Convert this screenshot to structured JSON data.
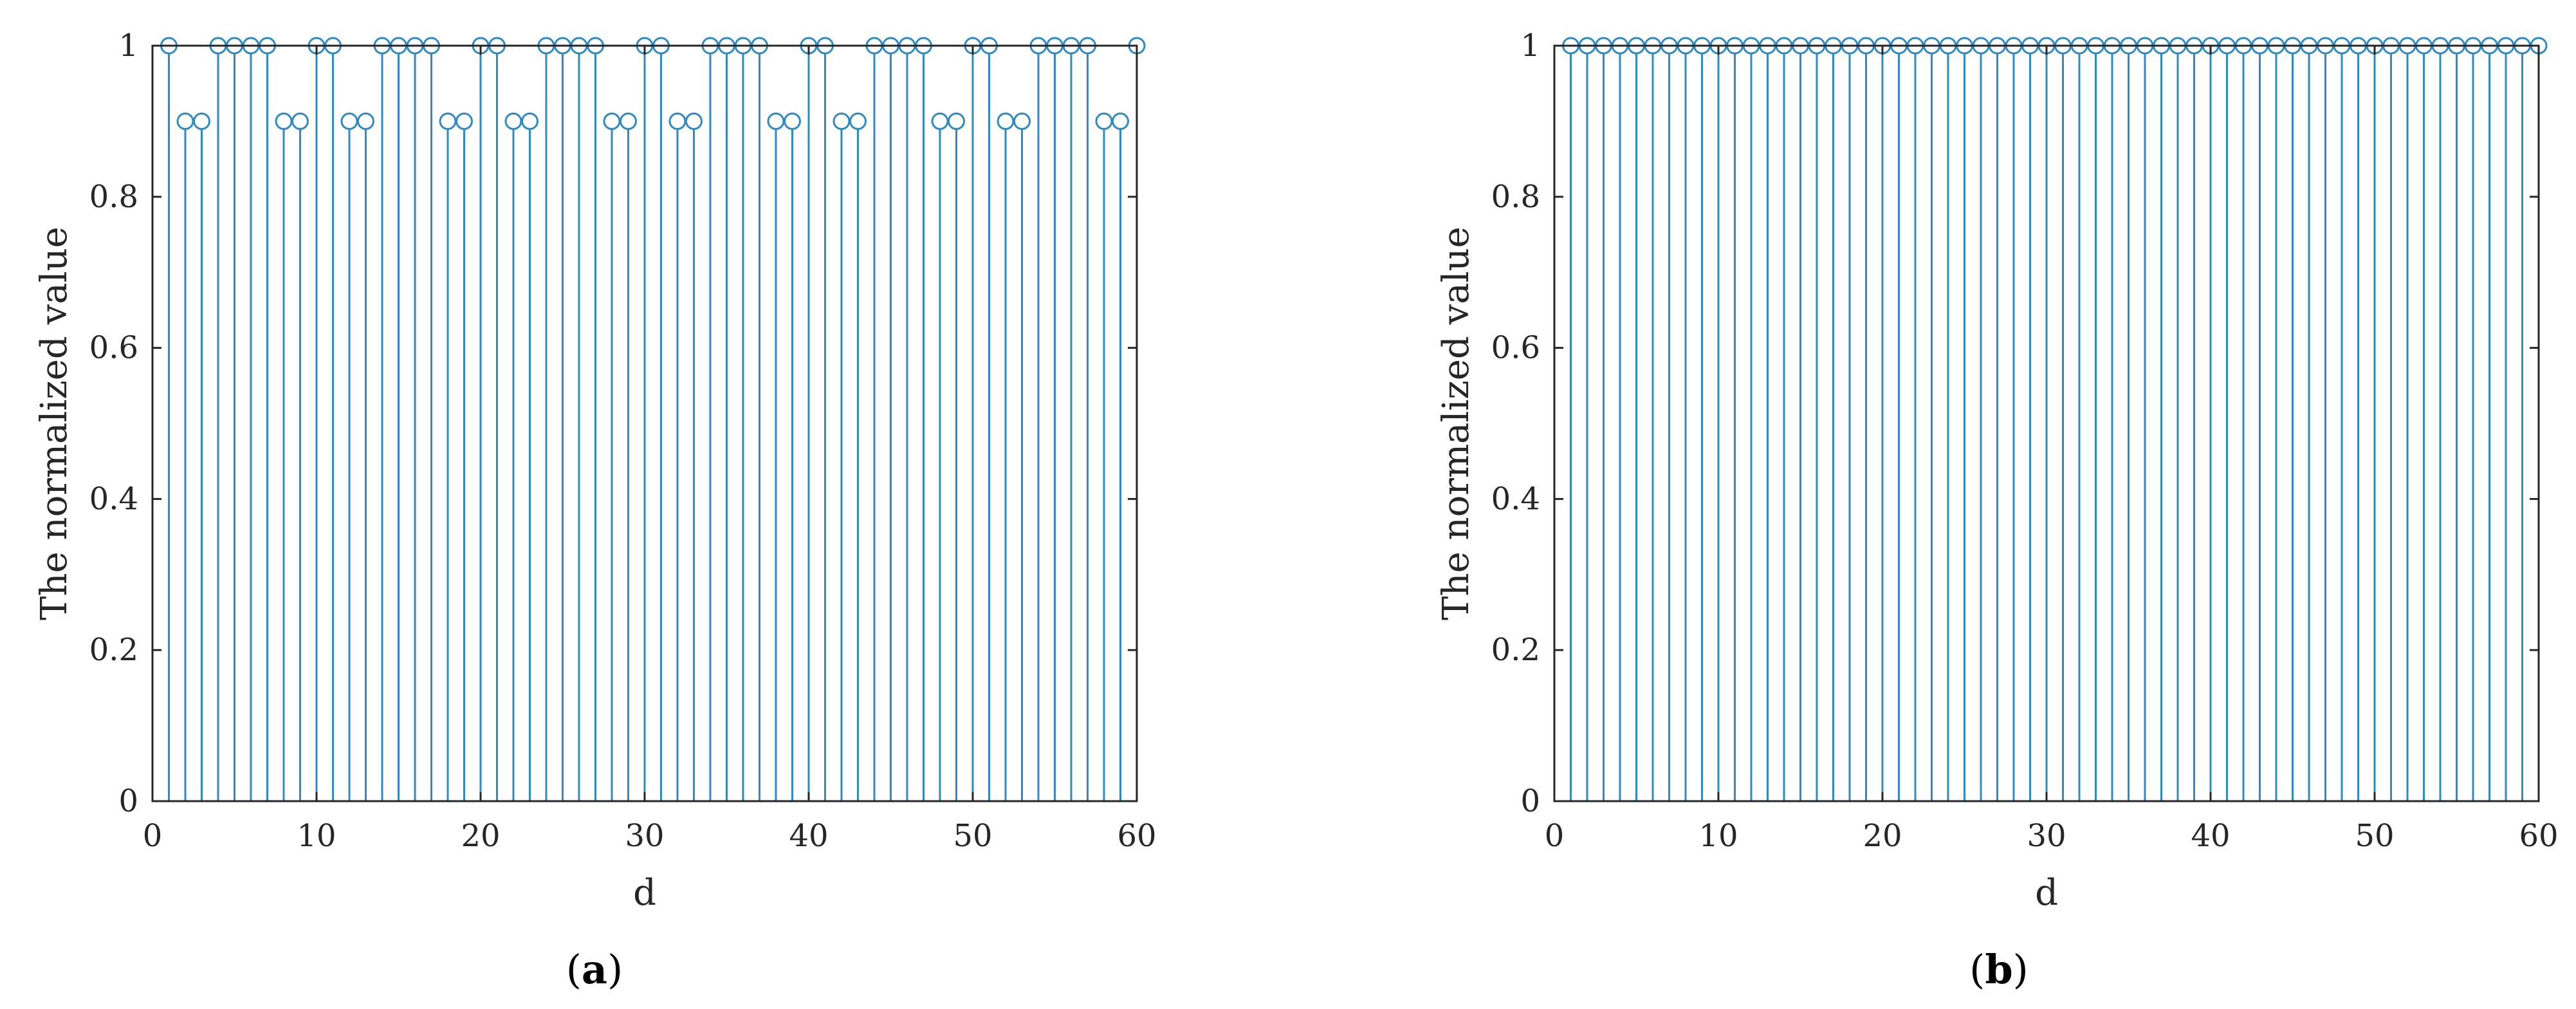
{
  "style": {
    "stem_color": "#2f8ac4",
    "axis_color": "#262626"
  },
  "chart_data": [
    {
      "type": "stem",
      "panel_label": "a",
      "caption_prefix": "(",
      "caption_suffix": ")",
      "xlabel": "d",
      "ylabel": "The normalized value",
      "xlim": [
        0,
        60
      ],
      "ylim": [
        0,
        1
      ],
      "xticks": [
        "0",
        "10",
        "20",
        "30",
        "40",
        "50",
        "60"
      ],
      "yticks": [
        "0",
        "0.2",
        "0.4",
        "0.6",
        "0.8",
        "1"
      ],
      "grid": false,
      "x": [
        1,
        2,
        3,
        4,
        5,
        6,
        7,
        8,
        9,
        10,
        11,
        12,
        13,
        14,
        15,
        16,
        17,
        18,
        19,
        20,
        21,
        22,
        23,
        24,
        25,
        26,
        27,
        28,
        29,
        30,
        31,
        32,
        33,
        34,
        35,
        36,
        37,
        38,
        39,
        40,
        41,
        42,
        43,
        44,
        45,
        46,
        47,
        48,
        49,
        50,
        51,
        52,
        53,
        54,
        55,
        56,
        57,
        58,
        59,
        60
      ],
      "y": [
        1,
        0.9,
        0.9,
        1,
        1,
        1,
        1,
        0.9,
        0.9,
        1,
        1,
        0.9,
        0.9,
        1,
        1,
        1,
        1,
        0.9,
        0.9,
        1,
        1,
        0.9,
        0.9,
        1,
        1,
        1,
        1,
        0.9,
        0.9,
        1,
        1,
        0.9,
        0.9,
        1,
        1,
        1,
        1,
        0.9,
        0.9,
        1,
        1,
        0.9,
        0.9,
        1,
        1,
        1,
        1,
        0.9,
        0.9,
        1,
        1,
        0.9,
        0.9,
        1,
        1,
        1,
        1,
        0.9,
        0.9,
        1
      ]
    },
    {
      "type": "stem",
      "panel_label": "b",
      "caption_prefix": "(",
      "caption_suffix": ")",
      "xlabel": "d",
      "ylabel": "The normalized value",
      "xlim": [
        0,
        60
      ],
      "ylim": [
        0,
        1
      ],
      "xticks": [
        "0",
        "10",
        "20",
        "30",
        "40",
        "50",
        "60"
      ],
      "yticks": [
        "0",
        "0.2",
        "0.4",
        "0.6",
        "0.8",
        "1"
      ],
      "grid": false,
      "x": [
        1,
        2,
        3,
        4,
        5,
        6,
        7,
        8,
        9,
        10,
        11,
        12,
        13,
        14,
        15,
        16,
        17,
        18,
        19,
        20,
        21,
        22,
        23,
        24,
        25,
        26,
        27,
        28,
        29,
        30,
        31,
        32,
        33,
        34,
        35,
        36,
        37,
        38,
        39,
        40,
        41,
        42,
        43,
        44,
        45,
        46,
        47,
        48,
        49,
        50,
        51,
        52,
        53,
        54,
        55,
        56,
        57,
        58,
        59,
        60
      ],
      "y": [
        1,
        1,
        1,
        1,
        1,
        1,
        1,
        1,
        1,
        1,
        1,
        1,
        1,
        1,
        1,
        1,
        1,
        1,
        1,
        1,
        1,
        1,
        1,
        1,
        1,
        1,
        1,
        1,
        1,
        1,
        1,
        1,
        1,
        1,
        1,
        1,
        1,
        1,
        1,
        1,
        1,
        1,
        1,
        1,
        1,
        1,
        1,
        1,
        1,
        1,
        1,
        1,
        1,
        1,
        1,
        1,
        1,
        1,
        1,
        1
      ]
    }
  ]
}
